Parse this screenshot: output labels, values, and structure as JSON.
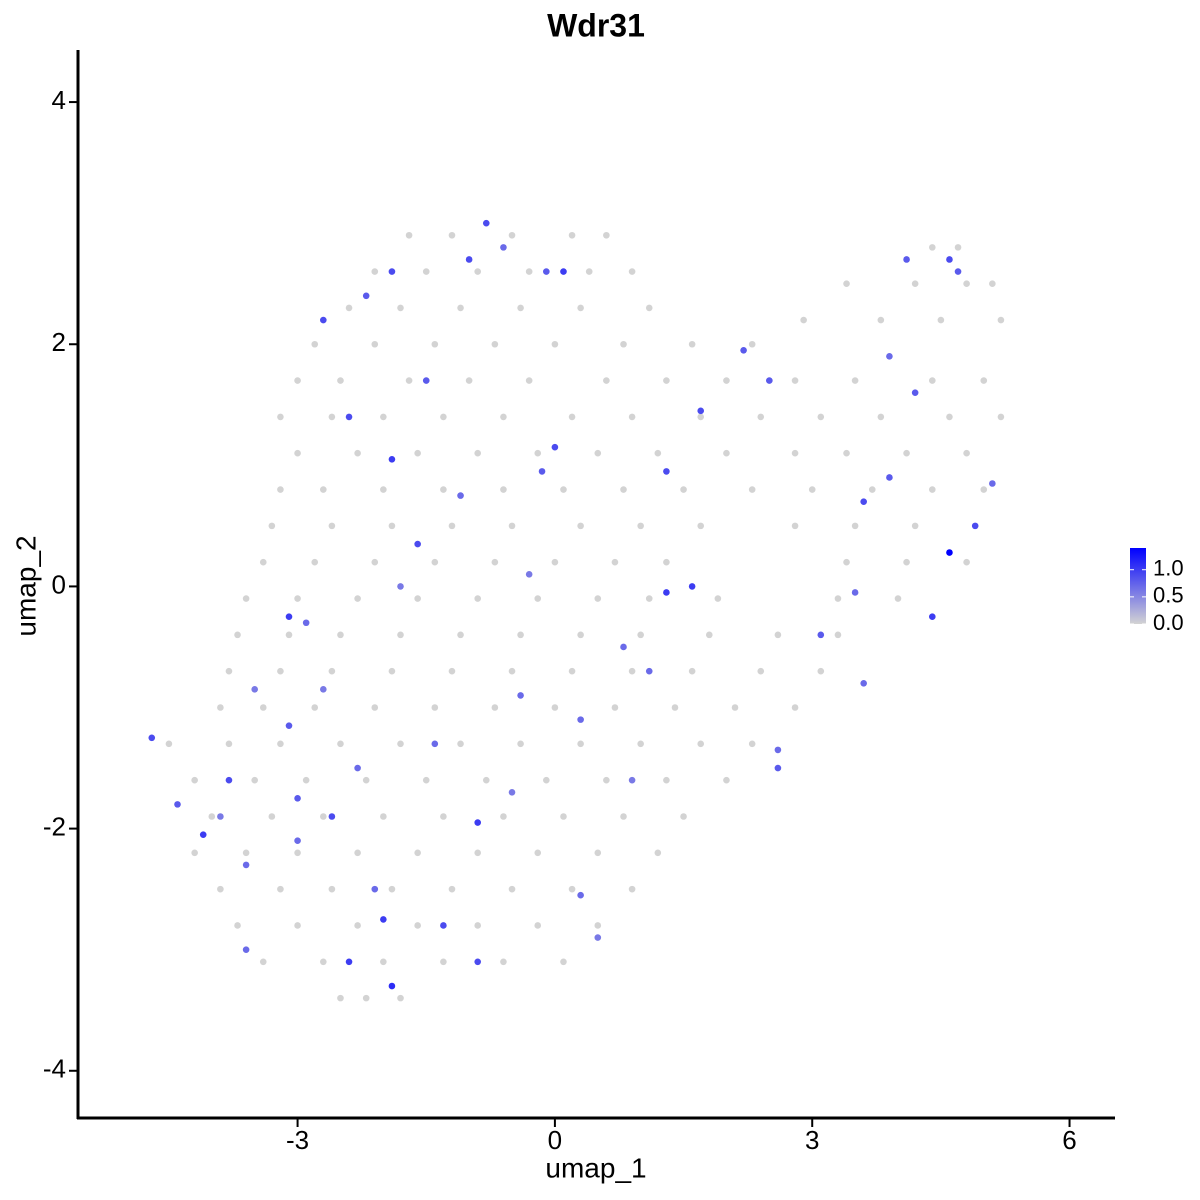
{
  "chart_data": {
    "type": "scatter",
    "title": "Wdr31",
    "x_label": "umap_1",
    "y_label": "umap_2",
    "xlim": [
      -5.56,
      6.53
    ],
    "ylim": [
      -4.39,
      4.43
    ],
    "xticks": [
      -3,
      0,
      3,
      6
    ],
    "yticks": [
      -4,
      -2,
      0,
      2,
      4
    ],
    "low_color": "#d3d3d3",
    "high_color": "#0000ff",
    "colorbar": {
      "lim": [
        0,
        1.4
      ],
      "ticks": [
        {
          "value": 0,
          "label": "0.0"
        },
        {
          "value": 0.5,
          "label": "0.5"
        },
        {
          "value": 1,
          "label": "1.0"
        }
      ]
    },
    "x": [
      -1.7,
      -1.2,
      -0.5,
      0.2,
      0.6,
      -2.1,
      -1.5,
      -0.9,
      -0.3,
      0.4,
      0.9,
      -2.4,
      -1.8,
      -1.1,
      -0.4,
      0.3,
      1.1,
      -2.8,
      -2.1,
      -1.4,
      -0.7,
      0.0,
      0.8,
      1.6,
      2.3,
      -3.0,
      -2.5,
      -1.7,
      -1.0,
      -0.3,
      0.6,
      1.3,
      2.0,
      2.8,
      3.5,
      4.4,
      5.0,
      -3.2,
      -2.6,
      -2.0,
      -1.3,
      -0.6,
      0.2,
      0.9,
      1.7,
      2.4,
      3.1,
      3.8,
      4.6,
      5.2,
      -3.0,
      -2.3,
      -1.6,
      -0.9,
      -0.2,
      0.5,
      1.2,
      2.0,
      2.8,
      3.4,
      4.1,
      4.8,
      -3.2,
      -2.7,
      -2.0,
      -1.3,
      -0.6,
      0.1,
      0.8,
      1.5,
      2.3,
      3.0,
      3.7,
      4.4,
      5.0,
      -3.3,
      -2.6,
      -1.9,
      -1.2,
      -0.5,
      0.3,
      1.0,
      1.7,
      2.8,
      3.5,
      4.2,
      -3.4,
      -2.8,
      -2.1,
      -1.4,
      -0.7,
      0.0,
      0.7,
      1.3,
      3.4,
      4.1,
      4.8,
      -3.6,
      -3.0,
      -2.3,
      -1.6,
      -0.9,
      -0.2,
      0.5,
      1.1,
      1.9,
      3.3,
      4.0,
      -3.7,
      -3.1,
      -2.5,
      -1.8,
      -1.1,
      -0.4,
      0.3,
      1.0,
      1.8,
      2.6,
      3.3,
      -3.8,
      -3.2,
      -2.6,
      -1.9,
      -1.2,
      -0.5,
      0.2,
      0.9,
      1.6,
      2.4,
      3.1,
      -3.9,
      -3.4,
      -2.8,
      -2.1,
      -1.4,
      -0.7,
      0.0,
      0.7,
      1.4,
      2.1,
      2.8,
      -4.5,
      -3.8,
      -3.2,
      -2.5,
      -1.8,
      -1.1,
      -0.4,
      0.3,
      1.0,
      1.7,
      2.3,
      -4.2,
      -3.5,
      -2.9,
      -2.2,
      -1.5,
      -0.8,
      -0.1,
      0.6,
      1.3,
      2.0,
      -4.0,
      -3.3,
      -2.7,
      -2.0,
      -1.3,
      -0.6,
      0.1,
      0.8,
      1.5,
      -4.2,
      -3.6,
      -3.0,
      -2.3,
      -1.6,
      -0.9,
      -0.2,
      0.5,
      1.2,
      -3.9,
      -3.2,
      -2.6,
      -1.9,
      -1.2,
      -0.5,
      0.2,
      0.9,
      -3.7,
      -3.0,
      -2.3,
      -1.6,
      -0.9,
      -0.2,
      0.5,
      -3.4,
      -2.7,
      -2.0,
      -1.3,
      -0.6,
      0.1,
      -2.5,
      -2.2,
      -1.8,
      3.4,
      4.2,
      4.8,
      5.1,
      2.9,
      3.8,
      4.5,
      5.2,
      4.4,
      4.7,
      -4.7,
      -4.4,
      -4.1,
      -3.8,
      -3.9,
      -3.6,
      -3.0,
      -3.0,
      -3.1,
      -3.1,
      -2.9,
      -2.7,
      -2.6,
      -2.4,
      -2.3,
      -2.1,
      -2.0,
      -1.9,
      -1.3,
      -0.9,
      -0.9,
      -2.7,
      -2.4,
      -2.2,
      -1.9,
      -1.9,
      -1.5,
      -1.6,
      -1.1,
      -1.0,
      -0.8,
      -0.6,
      -0.1,
      0.1,
      0.0,
      -0.15,
      -0.3,
      -0.4,
      0.3,
      0.5,
      0.3,
      0.9,
      1.1,
      1.3,
      1.6,
      1.7,
      1.3,
      2.2,
      2.5,
      2.6,
      2.6,
      3.1,
      3.6,
      3.5,
      3.6,
      3.9,
      4.1,
      4.2,
      4.4,
      4.6,
      4.6,
      4.7,
      4.9,
      5.1,
      3.9,
      -3.5,
      -3.6,
      -1.4,
      -0.5,
      0.8,
      -1.8
    ],
    "values": [
      2.9,
      2.9,
      2.9,
      2.9,
      2.9,
      2.6,
      2.6,
      2.6,
      2.6,
      2.6,
      2.6,
      2.3,
      2.3,
      2.3,
      2.3,
      2.3,
      2.3,
      2.0,
      2.0,
      2.0,
      2.0,
      2.0,
      2.0,
      2.0,
      2.0,
      1.7,
      1.7,
      1.7,
      1.7,
      1.7,
      1.7,
      1.7,
      1.7,
      1.7,
      1.7,
      1.7,
      1.7,
      1.4,
      1.4,
      1.4,
      1.4,
      1.4,
      1.4,
      1.4,
      1.4,
      1.4,
      1.4,
      1.4,
      1.4,
      1.4,
      1.1,
      1.1,
      1.1,
      1.1,
      1.1,
      1.1,
      1.1,
      1.1,
      1.1,
      1.1,
      1.1,
      1.1,
      0.8,
      0.8,
      0.8,
      0.8,
      0.8,
      0.8,
      0.8,
      0.8,
      0.8,
      0.8,
      0.8,
      0.8,
      0.8,
      0.5,
      0.5,
      0.5,
      0.5,
      0.5,
      0.5,
      0.5,
      0.5,
      0.5,
      0.5,
      0.5,
      0.2,
      0.2,
      0.2,
      0.2,
      0.2,
      0.2,
      0.2,
      0.2,
      0.2,
      0.2,
      0.2,
      -0.1,
      -0.1,
      -0.1,
      -0.1,
      -0.1,
      -0.1,
      -0.1,
      -0.1,
      -0.1,
      -0.1,
      -0.1,
      -0.4,
      -0.4,
      -0.4,
      -0.4,
      -0.4,
      -0.4,
      -0.4,
      -0.4,
      -0.4,
      -0.4,
      -0.4,
      -0.7,
      -0.7,
      -0.7,
      -0.7,
      -0.7,
      -0.7,
      -0.7,
      -0.7,
      -0.7,
      -0.7,
      -0.7,
      -1.0,
      -1.0,
      -1.0,
      -1.0,
      -1.0,
      -1.0,
      -1.0,
      -1.0,
      -1.0,
      -1.0,
      -1.0,
      -1.3,
      -1.3,
      -1.3,
      -1.3,
      -1.3,
      -1.3,
      -1.3,
      -1.3,
      -1.3,
      -1.3,
      -1.3,
      -1.6,
      -1.6,
      -1.6,
      -1.6,
      -1.6,
      -1.6,
      -1.6,
      -1.6,
      -1.6,
      -1.6,
      -1.9,
      -1.9,
      -1.9,
      -1.9,
      -1.9,
      -1.9,
      -1.9,
      -1.9,
      -1.9,
      -2.2,
      -2.2,
      -2.2,
      -2.2,
      -2.2,
      -2.2,
      -2.2,
      -2.2,
      -2.2,
      -2.5,
      -2.5,
      -2.5,
      -2.5,
      -2.5,
      -2.5,
      -2.5,
      -2.5,
      -2.8,
      -2.8,
      -2.8,
      -2.8,
      -2.8,
      -2.8,
      -2.8,
      -3.1,
      -3.1,
      -3.1,
      -3.1,
      -3.1,
      -3.1,
      -3.4,
      -3.4,
      -3.4,
      2.5,
      2.5,
      2.5,
      2.5,
      2.2,
      2.2,
      2.2,
      2.2,
      2.8,
      2.8,
      -1.25,
      -1.8,
      -2.05,
      -1.6,
      -1.9,
      -3.0,
      -2.1,
      -1.75,
      -1.15,
      -0.25,
      -0.3,
      -0.85,
      -1.9,
      -3.1,
      -1.5,
      -2.5,
      -2.75,
      -3.3,
      -2.8,
      -1.95,
      -3.1,
      2.2,
      1.4,
      2.4,
      2.6,
      1.05,
      1.7,
      0.35,
      0.75,
      2.7,
      3.0,
      2.8,
      2.6,
      2.6,
      1.15,
      0.95,
      0.1,
      -0.9,
      -1.1,
      -2.9,
      -2.55,
      -1.6,
      -0.7,
      -0.05,
      0.0,
      1.45,
      0.95,
      1.95,
      1.7,
      -1.35,
      -1.5,
      -0.4,
      0.7,
      -0.05,
      -0.8,
      1.9,
      2.7,
      1.6,
      -0.25,
      0.28,
      2.7,
      2.6,
      0.5,
      0.85,
      0.9,
      -0.85,
      -2.3,
      -1.3,
      -1.7,
      -0.5,
      0.0
    ],
    "expression": [
      0,
      0,
      0,
      0,
      0,
      0,
      0,
      0,
      0,
      0,
      0,
      0,
      0,
      0,
      0,
      0,
      0,
      0,
      0,
      0,
      0,
      0,
      0,
      0,
      0,
      0,
      0,
      0,
      0,
      0,
      0,
      0,
      0,
      0,
      0,
      0,
      0,
      0,
      0,
      0,
      0,
      0,
      0,
      0,
      0,
      0,
      0,
      0,
      0,
      0,
      0,
      0,
      0,
      0,
      0,
      0,
      0,
      0,
      0,
      0,
      0,
      0,
      0,
      0,
      0,
      0,
      0,
      0,
      0,
      0,
      0,
      0,
      0,
      0,
      0,
      0,
      0,
      0,
      0,
      0,
      0,
      0,
      0,
      0,
      0,
      0,
      0,
      0,
      0,
      0,
      0,
      0,
      0,
      0,
      0,
      0,
      0,
      0,
      0,
      0,
      0,
      0,
      0,
      0,
      0,
      0,
      0,
      0,
      0,
      0,
      0,
      0,
      0,
      0,
      0,
      0,
      0,
      0,
      0,
      0,
      0,
      0,
      0,
      0,
      0,
      0,
      0,
      0,
      0,
      0,
      0,
      0,
      0,
      0,
      0,
      0,
      0,
      0,
      0,
      0,
      0,
      0,
      0,
      0,
      0,
      0,
      0,
      0,
      0,
      0,
      0,
      0,
      0,
      0,
      0,
      0,
      0,
      0,
      0,
      0,
      0,
      0,
      0,
      0,
      0,
      0,
      0,
      0,
      0,
      0,
      0,
      0,
      0,
      0,
      0,
      0,
      0,
      0,
      0,
      0,
      0,
      0,
      0,
      0,
      0,
      0,
      0,
      0,
      0,
      0,
      0,
      0,
      0,
      0,
      0,
      0,
      0,
      0,
      0,
      0,
      0,
      0,
      0,
      0,
      0,
      0,
      0,
      0,
      0,
      0,
      0,
      0,
      0,
      0,
      0.9,
      0.8,
      1.0,
      0.9,
      0.6,
      0.7,
      0.7,
      0.8,
      0.8,
      1.0,
      0.7,
      0.6,
      0.9,
      1.0,
      0.7,
      0.7,
      1.0,
      1.1,
      0.9,
      1.0,
      0.9,
      0.9,
      0.9,
      0.8,
      0.9,
      1.0,
      0.8,
      0.9,
      0.7,
      0.9,
      0.9,
      0.7,
      0.8,
      1.0,
      0.9,
      0.8,
      0.6,
      0.7,
      0.7,
      0.6,
      0.7,
      0.6,
      0.7,
      1.0,
      1.0,
      0.9,
      0.9,
      0.8,
      0.8,
      0.7,
      0.8,
      0.8,
      0.9,
      0.7,
      0.7,
      0.7,
      0.8,
      0.8,
      1.0,
      1.4,
      0.9,
      0.8,
      0.9,
      0.7,
      0.8,
      0.6,
      0.7,
      0.7,
      0.6,
      0.7,
      0.6
    ]
  }
}
